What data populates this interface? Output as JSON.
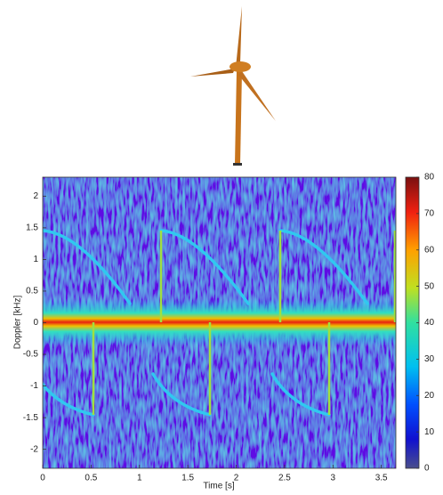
{
  "chart_data": {
    "type": "heatmap",
    "xlabel": "Time [s]",
    "ylabel": "Doppler [kHz]",
    "xlim": [
      0,
      3.65
    ],
    "xticks": [
      0,
      0.5,
      1,
      1.5,
      2,
      2.5,
      3,
      3.5
    ],
    "ylim": [
      -2.3,
      2.3
    ],
    "yticks": [
      -2,
      -1.5,
      -1,
      -0.5,
      0,
      0.5,
      1,
      1.5,
      2
    ],
    "colorbar": {
      "lim": [
        0,
        80
      ],
      "ticks": [
        0,
        10,
        20,
        30,
        40,
        50,
        60,
        70,
        80
      ]
    }
  }
}
